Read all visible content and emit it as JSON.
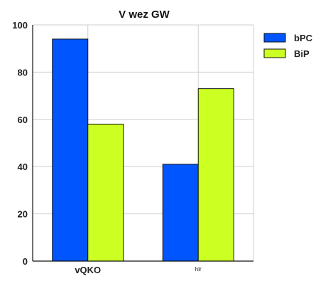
{
  "chart_data": {
    "type": "bar",
    "title": "V wez GW",
    "xlabel": "",
    "ylabel": "",
    "categories": [
      "vQKO",
      "hlr"
    ],
    "category_label_styles": [
      "large",
      "small"
    ],
    "series": [
      {
        "name": "bPC",
        "color": "#0055ff",
        "values": [
          94,
          41
        ]
      },
      {
        "name": "BiP",
        "color": "#ccff22",
        "values": [
          58,
          73
        ]
      }
    ],
    "ylim": [
      0,
      100
    ],
    "yticks": [
      0,
      20,
      40,
      60,
      80,
      100
    ],
    "grid": true,
    "legend_position": "top-right"
  }
}
